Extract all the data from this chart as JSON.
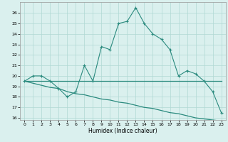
{
  "xlabel": "Humidex (Indice chaleur)",
  "x": [
    0,
    1,
    2,
    3,
    4,
    5,
    6,
    7,
    8,
    9,
    10,
    11,
    12,
    13,
    14,
    15,
    16,
    17,
    18,
    19,
    20,
    21,
    22,
    23
  ],
  "line1": [
    19.5,
    20.0,
    20.0,
    19.5,
    18.8,
    18.0,
    18.5,
    21.0,
    19.5,
    22.8,
    22.5,
    25.0,
    25.2,
    26.5,
    25.0,
    24.0,
    23.5,
    22.5,
    20.0,
    20.5,
    20.2,
    19.5,
    18.5,
    16.5
  ],
  "line2": [
    19.5,
    19.5,
    19.5,
    19.5,
    19.5,
    19.5,
    19.5,
    19.5,
    19.5,
    19.5,
    19.5,
    19.5,
    19.5,
    19.5,
    19.5,
    19.5,
    19.5,
    19.5,
    19.5,
    19.5,
    19.5,
    19.5,
    19.5,
    19.5
  ],
  "line3": [
    19.5,
    19.3,
    19.1,
    18.9,
    18.8,
    18.5,
    18.3,
    18.2,
    18.0,
    17.8,
    17.7,
    17.5,
    17.4,
    17.2,
    17.0,
    16.9,
    16.7,
    16.5,
    16.4,
    16.2,
    16.0,
    15.9,
    15.8,
    15.7
  ],
  "line_color": "#2a8a7e",
  "bg_color": "#daf0ee",
  "grid_color": "#b0d8d4",
  "ylim": [
    16,
    26.8
  ],
  "xlim": [
    -0.5,
    23.5
  ],
  "yticks": [
    16,
    17,
    18,
    19,
    20,
    21,
    22,
    23,
    24,
    25,
    26
  ],
  "xticks": [
    0,
    1,
    2,
    3,
    4,
    5,
    6,
    7,
    8,
    9,
    10,
    11,
    12,
    13,
    14,
    15,
    16,
    17,
    18,
    19,
    20,
    21,
    22,
    23
  ]
}
